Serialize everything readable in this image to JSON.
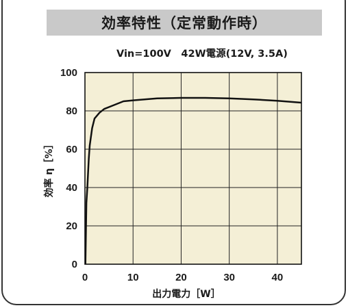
{
  "title": "効率特性（定常動作時）",
  "subtitle": "Vin=100V　42W電源(12V, 3.5A)",
  "chart_data": {
    "type": "line",
    "title": "効率特性（定常動作時）",
    "subtitle": "Vin=100V　42W電源(12V, 3.5A)",
    "xlabel": "出力電力［W］",
    "ylabel": "効率 η［%］",
    "xlim": [
      0,
      45
    ],
    "ylim": [
      0,
      100
    ],
    "xticks": [
      0,
      10,
      20,
      30,
      40
    ],
    "yticks": [
      0,
      20,
      40,
      60,
      80,
      100
    ],
    "grid": true,
    "background": "#f4efd6",
    "line_color": "#111111",
    "series": [
      {
        "x": [
          0.1,
          0.3,
          0.5,
          0.8,
          1.0,
          1.5,
          2.0,
          3.0,
          4.0,
          6.0,
          8.0,
          10.0,
          15.0,
          20.0,
          25.0,
          30.0,
          35.0,
          40.0,
          45.0
        ],
        "values": [
          0,
          32,
          40,
          55,
          62,
          71,
          76,
          79,
          81,
          83,
          85,
          85.5,
          86.5,
          86.8,
          86.8,
          86.5,
          86,
          85.3,
          84.3
        ]
      }
    ]
  }
}
